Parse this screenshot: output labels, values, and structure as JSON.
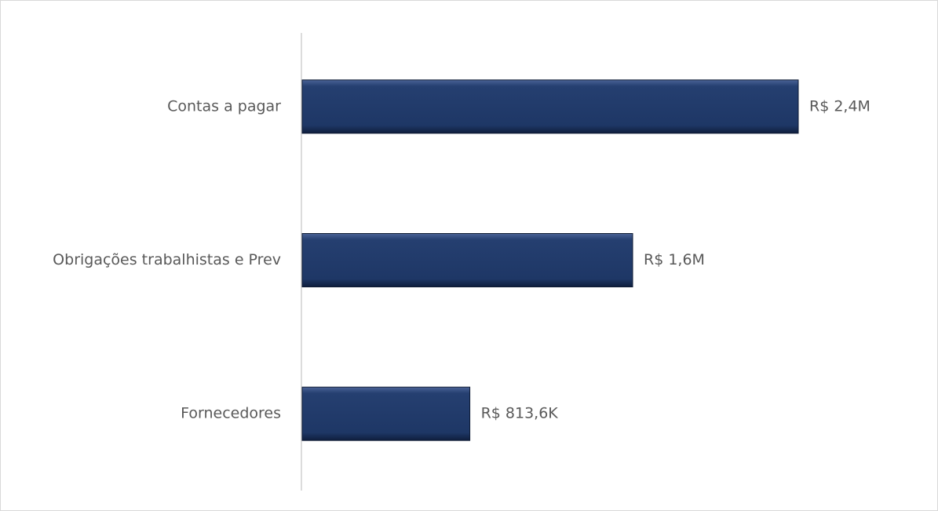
{
  "chart_data": {
    "type": "bar",
    "orientation": "horizontal",
    "categories": [
      "Contas a pagar",
      "Obrigações trabalhistas e Prev",
      "Fornecedores"
    ],
    "values": [
      2400000,
      1600000,
      813600
    ],
    "value_labels": [
      "R$ 2,4M",
      "R$ 1,6M",
      "R$ 813,6K"
    ],
    "color": "#203864"
  }
}
